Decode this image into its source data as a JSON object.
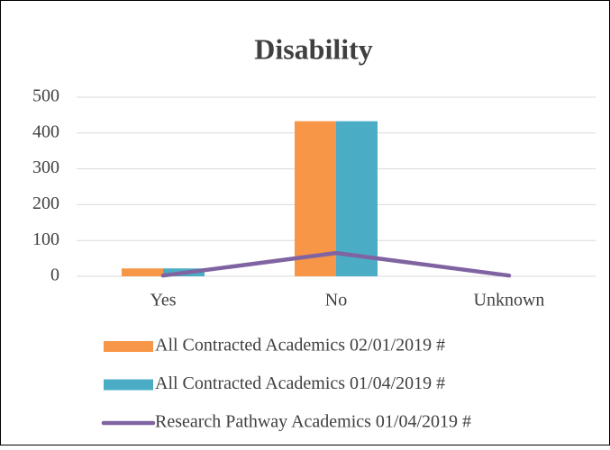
{
  "chart_data": {
    "type": "bar",
    "title": "Disability",
    "categories": [
      "Yes",
      "No",
      "Unknown"
    ],
    "series": [
      {
        "name": "All Contracted Academics 02/01/2019 #",
        "color": "#f79646",
        "type": "bar",
        "values": [
          22,
          433,
          0
        ]
      },
      {
        "name": "All Contracted Academics 01/04/2019 #",
        "color": "#4bacc6",
        "type": "bar",
        "values": [
          22,
          433,
          0
        ]
      },
      {
        "name": "Research Pathway Academics 01/04/2019 #",
        "color": "#8064a2",
        "type": "line",
        "values": [
          2,
          65,
          2
        ]
      }
    ],
    "ylim": [
      0,
      500
    ],
    "yticks": [
      0,
      100,
      200,
      300,
      400,
      500
    ],
    "grid": true,
    "legend": "bottom"
  }
}
